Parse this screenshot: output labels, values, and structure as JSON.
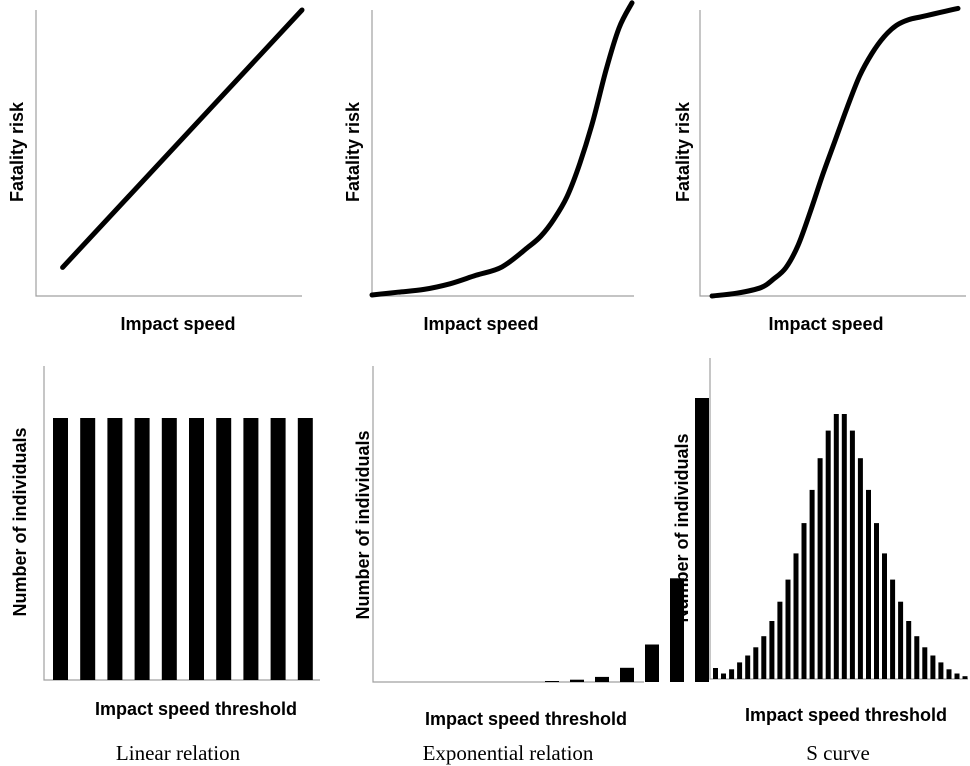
{
  "chart_data": [
    {
      "type": "line",
      "xlabel": "Impact speed",
      "ylabel": "Fatality risk",
      "x": [
        0.1,
        1.0
      ],
      "y": [
        0.1,
        1.0
      ]
    },
    {
      "type": "line",
      "xlabel": "Impact speed",
      "ylabel": "Fatality risk",
      "x": [
        0.0,
        0.1,
        0.2,
        0.3,
        0.4,
        0.5,
        0.6,
        0.65,
        0.7,
        0.75,
        0.8,
        0.85,
        0.9,
        0.95,
        1.0
      ],
      "y": [
        0.0,
        0.01,
        0.02,
        0.04,
        0.07,
        0.1,
        0.17,
        0.21,
        0.27,
        0.35,
        0.47,
        0.62,
        0.8,
        0.95,
        1.04
      ]
    },
    {
      "type": "line",
      "xlabel": "Impact speed",
      "ylabel": "Fatality risk",
      "x": [
        0.0,
        0.1,
        0.2,
        0.25,
        0.3,
        0.35,
        0.4,
        0.45,
        0.5,
        0.55,
        0.6,
        0.65,
        0.7,
        0.75,
        0.8,
        0.85,
        0.9,
        0.95,
        1.0
      ],
      "y": [
        0.0,
        0.01,
        0.03,
        0.06,
        0.1,
        0.18,
        0.3,
        0.43,
        0.55,
        0.67,
        0.78,
        0.86,
        0.92,
        0.96,
        0.98,
        0.99,
        1.0,
        1.01,
        1.02
      ]
    },
    {
      "type": "bar",
      "xlabel": "Impact speed threshold",
      "ylabel": "Number of individuals",
      "values": [
        1,
        1,
        1,
        1,
        1,
        1,
        1,
        1,
        1,
        1
      ]
    },
    {
      "type": "bar",
      "xlabel": "Impact speed threshold",
      "ylabel": "Number of individuals",
      "values": [
        0,
        0,
        0,
        0.003,
        0.008,
        0.018,
        0.05,
        0.132,
        0.365,
        1.0
      ]
    },
    {
      "type": "bar",
      "xlabel": "Impact speed threshold",
      "ylabel": "Number of individuals",
      "values": [
        0.04,
        0.02,
        0.035,
        0.06,
        0.085,
        0.115,
        0.155,
        0.21,
        0.28,
        0.36,
        0.455,
        0.565,
        0.685,
        0.8,
        0.9,
        0.96,
        0.96,
        0.9,
        0.8,
        0.685,
        0.565,
        0.455,
        0.36,
        0.28,
        0.21,
        0.155,
        0.115,
        0.085,
        0.06,
        0.035,
        0.02,
        0.01
      ]
    }
  ],
  "captions": [
    "Linear relation",
    "Exponential relation",
    "S curve"
  ]
}
